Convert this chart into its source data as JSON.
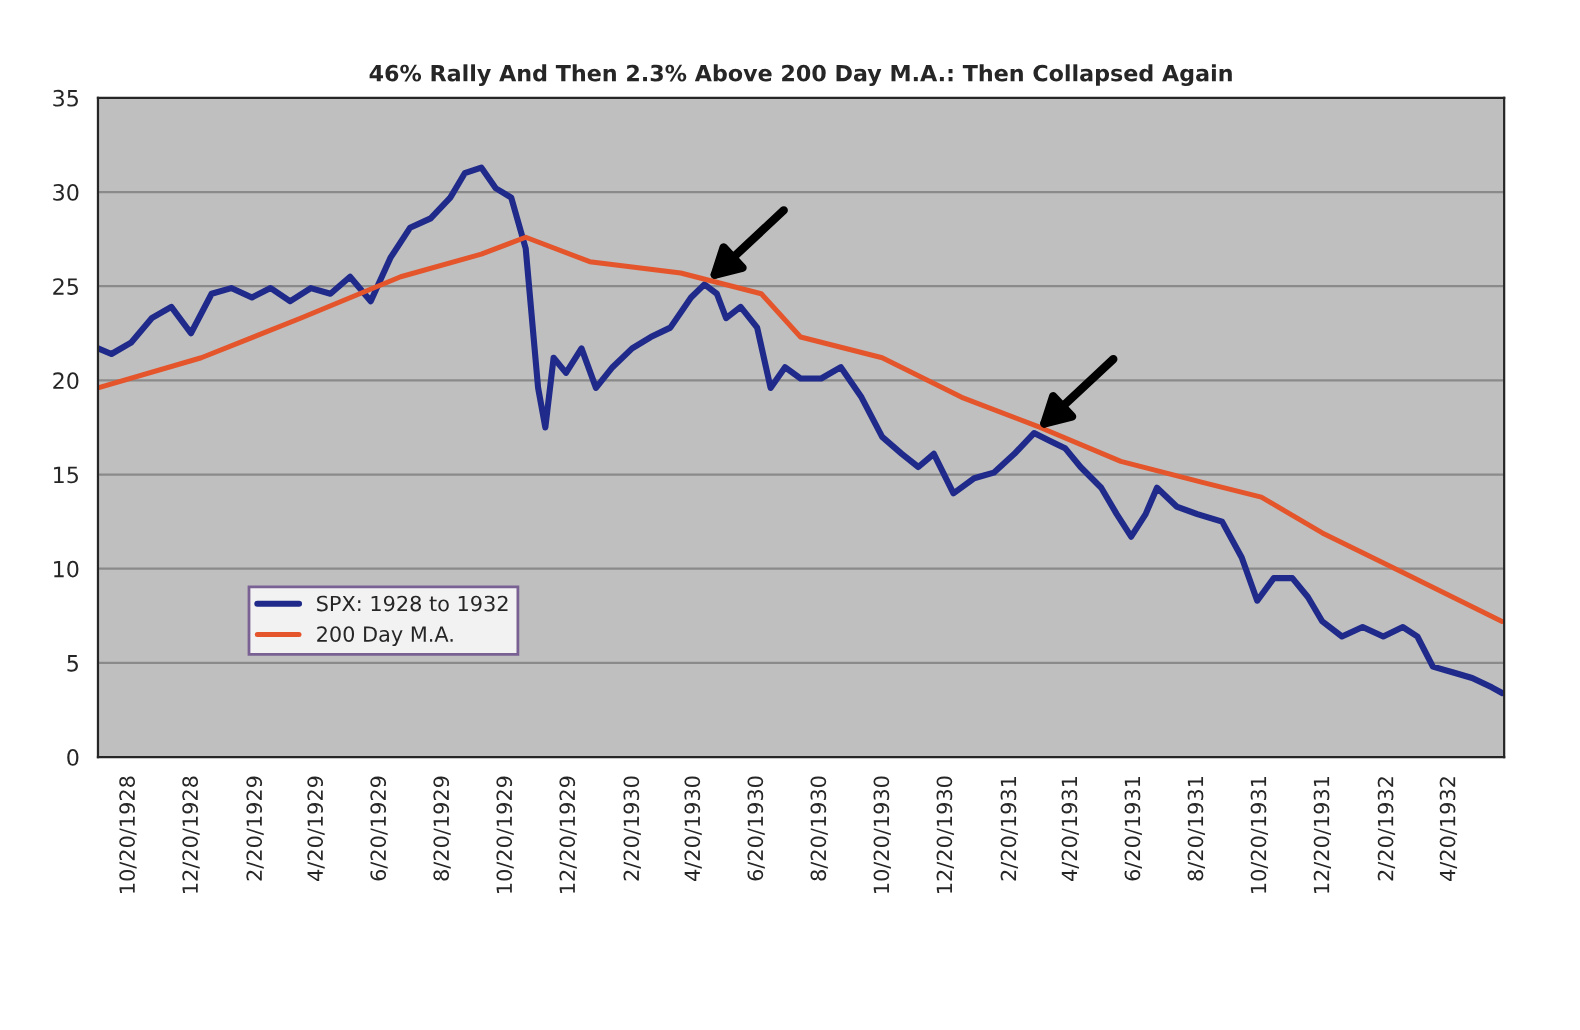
{
  "chart_data": {
    "type": "line",
    "title": "46% Rally And Then 2.3% Above 200 Day M.A.: Then Collapsed Again",
    "series": [
      {
        "name": "SPX: 1928 to 1932",
        "color": "#1f2a8a",
        "x": [
          "1928-09-20",
          "1928-10-03",
          "1928-10-22",
          "1928-11-11",
          "1928-11-30",
          "1928-12-19",
          "1929-01-08",
          "1929-01-27",
          "1929-02-16",
          "1929-03-06",
          "1929-03-25",
          "1929-04-14",
          "1929-05-03",
          "1929-05-22",
          "1929-06-11",
          "1929-06-30",
          "1929-07-19",
          "1929-08-08",
          "1929-08-27",
          "1929-09-10",
          "1929-09-26",
          "1929-10-10",
          "1929-10-25",
          "1929-11-08",
          "1929-11-20",
          "1929-11-27",
          "1929-12-05",
          "1929-12-17",
          "1930-01-01",
          "1930-01-15",
          "1930-01-31",
          "1930-02-19",
          "1930-03-09",
          "1930-03-28",
          "1930-04-17",
          "1930-04-30",
          "1930-05-12",
          "1930-05-21",
          "1930-06-04",
          "1930-06-20",
          "1930-07-03",
          "1930-07-17",
          "1930-08-01",
          "1930-08-21",
          "1930-09-09",
          "1930-09-29",
          "1930-10-19",
          "1930-11-07",
          "1930-11-23",
          "1930-12-08",
          "1930-12-27",
          "1931-01-16",
          "1931-02-04",
          "1931-02-24",
          "1931-03-15",
          "1931-03-30",
          "1931-04-14",
          "1931-04-29",
          "1931-05-19",
          "1931-06-03",
          "1931-06-17",
          "1931-07-01",
          "1931-07-12",
          "1931-07-31",
          "1931-08-20",
          "1931-09-13",
          "1931-10-02",
          "1931-10-17",
          "1931-11-02",
          "1931-11-20",
          "1931-12-05",
          "1931-12-19",
          "1932-01-07",
          "1932-01-27",
          "1932-02-16",
          "1932-03-06",
          "1932-03-20",
          "1932-04-04",
          "1932-04-23",
          "1932-05-12",
          "1932-05-31",
          "1932-06-10"
        ],
        "values": [
          21.7,
          21.4,
          22,
          23.3,
          23.9,
          22.5,
          24.6,
          24.9,
          24.4,
          24.9,
          24.2,
          24.9,
          24.6,
          25.5,
          24.2,
          26.5,
          28.1,
          28.6,
          29.7,
          31,
          31.3,
          30.2,
          29.7,
          27,
          19.6,
          17.5,
          21.2,
          20.4,
          21.7,
          19.6,
          20.7,
          21.7,
          22.3,
          22.8,
          24.4,
          25.1,
          24.6,
          23.3,
          23.9,
          22.8,
          19.6,
          20.7,
          20.1,
          20.1,
          20.7,
          19.1,
          17,
          16.1,
          15.4,
          16.1,
          14,
          14.8,
          15.1,
          16.1,
          17.2,
          16.8,
          16.4,
          15.4,
          14.3,
          12.9,
          11.7,
          12.9,
          14.3,
          13.3,
          12.9,
          12.5,
          10.6,
          8.3,
          9.5,
          9.5,
          8.5,
          7.2,
          6.4,
          6.9,
          6.4,
          6.9,
          6.4,
          4.8,
          4.5,
          4.2,
          3.7,
          3.4
        ]
      },
      {
        "name": "200 Day M.A.",
        "color": "#e4552c",
        "x": [
          "1928-09-20",
          "1928-12-29",
          "1929-04-04",
          "1929-07-10",
          "1929-09-26",
          "1929-11-08",
          "1930-01-09",
          "1930-04-07",
          "1930-06-24",
          "1930-08-01",
          "1930-10-19",
          "1931-01-04",
          "1931-03-21",
          "1931-06-07",
          "1931-08-24",
          "1931-10-21",
          "1931-12-19",
          "1932-03-06",
          "1932-06-10"
        ],
        "values": [
          19.6,
          21.2,
          23.3,
          25.5,
          26.7,
          27.6,
          26.3,
          25.7,
          24.6,
          22.3,
          21.2,
          19.1,
          17.5,
          15.7,
          14.6,
          13.8,
          11.9,
          9.8,
          7.2
        ]
      }
    ],
    "xlim": [
      "1928-09-20",
      "1932-06-12"
    ],
    "xticks": [
      {
        "value": "1928-10-20",
        "label": "10/20/1928"
      },
      {
        "value": "1928-12-20",
        "label": "12/20/1928"
      },
      {
        "value": "1929-02-20",
        "label": "2/20/1929"
      },
      {
        "value": "1929-04-20",
        "label": "4/20/1929"
      },
      {
        "value": "1929-06-20",
        "label": "6/20/1929"
      },
      {
        "value": "1929-08-20",
        "label": "8/20/1929"
      },
      {
        "value": "1929-10-20",
        "label": "10/20/1929"
      },
      {
        "value": "1929-12-20",
        "label": "12/20/1929"
      },
      {
        "value": "1930-02-20",
        "label": "2/20/1930"
      },
      {
        "value": "1930-04-20",
        "label": "4/20/1930"
      },
      {
        "value": "1930-06-20",
        "label": "6/20/1930"
      },
      {
        "value": "1930-08-20",
        "label": "8/20/1930"
      },
      {
        "value": "1930-10-20",
        "label": "10/20/1930"
      },
      {
        "value": "1930-12-20",
        "label": "12/20/1930"
      },
      {
        "value": "1931-02-20",
        "label": "2/20/1931"
      },
      {
        "value": "1931-04-20",
        "label": "4/20/1931"
      },
      {
        "value": "1931-06-20",
        "label": "6/20/1931"
      },
      {
        "value": "1931-08-20",
        "label": "8/20/1931"
      },
      {
        "value": "1931-10-20",
        "label": "10/20/1931"
      },
      {
        "value": "1931-12-20",
        "label": "12/20/1931"
      },
      {
        "value": "1932-02-20",
        "label": "2/20/1932"
      },
      {
        "value": "1932-04-20",
        "label": "4/20/1932"
      }
    ],
    "ylim": [
      0,
      35
    ],
    "yticks": [
      0,
      5,
      10,
      15,
      20,
      25,
      30,
      35
    ],
    "grid": "y",
    "legend": "bottom left",
    "marker": "none",
    "line_style": "solid"
  }
}
